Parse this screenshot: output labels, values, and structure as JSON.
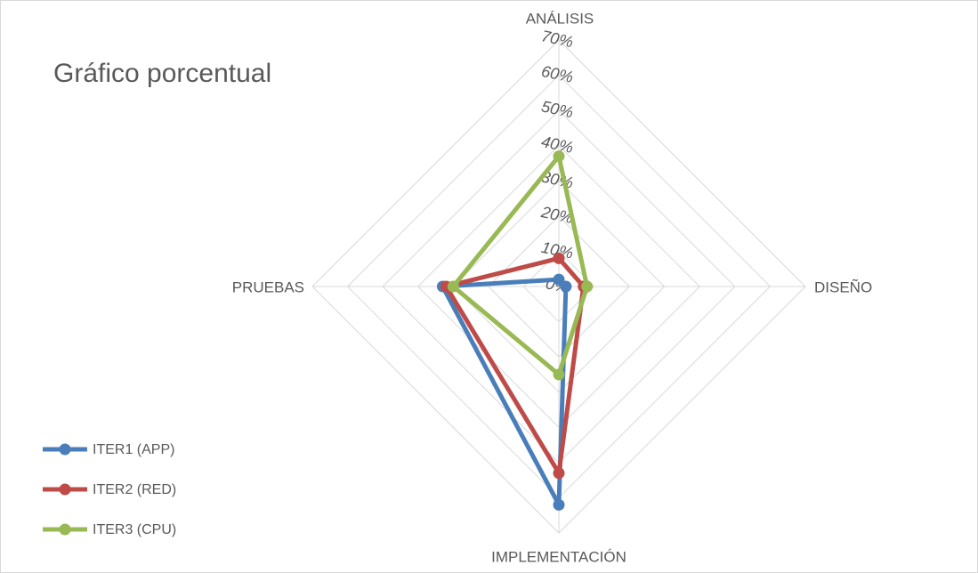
{
  "chart_data": {
    "type": "radar",
    "title": "Gráfico porcentual",
    "categories": [
      "ANÁLISIS",
      "DISEÑO",
      "IMPLEMENTACIÓN",
      "PRUEBAS"
    ],
    "series": [
      {
        "name": "ITER1 (APP)",
        "color": "#4a7ebb",
        "values": [
          2,
          2,
          62,
          33
        ]
      },
      {
        "name": "ITER2 (RED)",
        "color": "#be4b48",
        "values": [
          8,
          7,
          53,
          32
        ]
      },
      {
        "name": "ITER3 (CPU)",
        "color": "#98b954",
        "values": [
          37,
          8,
          25,
          30
        ]
      }
    ],
    "ylim": [
      0,
      70
    ],
    "yticks": [
      {
        "value": 0,
        "label": "0%"
      },
      {
        "value": 10,
        "label": "10%"
      },
      {
        "value": 20,
        "label": "20%"
      },
      {
        "value": 30,
        "label": "30%"
      },
      {
        "value": 40,
        "label": "40%"
      },
      {
        "value": 50,
        "label": "50%"
      },
      {
        "value": 60,
        "label": "60%"
      },
      {
        "value": 70,
        "label": "70%"
      }
    ],
    "grid": true,
    "legend": "bottom-left"
  }
}
